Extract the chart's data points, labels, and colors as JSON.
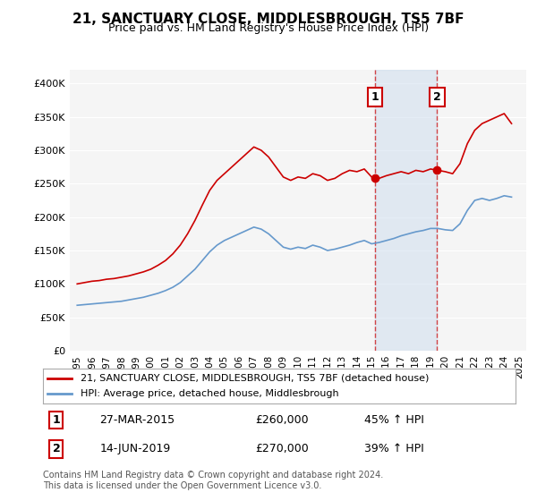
{
  "title": "21, SANCTUARY CLOSE, MIDDLESBROUGH, TS5 7BF",
  "subtitle": "Price paid vs. HM Land Registry's House Price Index (HPI)",
  "title_fontsize": 11,
  "subtitle_fontsize": 9,
  "legend_line1": "21, SANCTUARY CLOSE, MIDDLESBROUGH, TS5 7BF (detached house)",
  "legend_line2": "HPI: Average price, detached house, Middlesbrough",
  "red_color": "#cc0000",
  "blue_color": "#6699cc",
  "marker1_date": 2015.23,
  "marker2_date": 2019.45,
  "marker1_label": "1",
  "marker2_label": "2",
  "annotation1": "27-MAR-2015",
  "annotation1_price": "£260,000",
  "annotation1_hpi": "45% ↑ HPI",
  "annotation2": "14-JUN-2019",
  "annotation2_price": "£270,000",
  "annotation2_hpi": "39% ↑ HPI",
  "footer": "Contains HM Land Registry data © Crown copyright and database right 2024.\nThis data is licensed under the Open Government Licence v3.0.",
  "background_color": "#ffffff",
  "plot_bg_color": "#f5f5f5",
  "ylim": [
    0,
    420000
  ],
  "yticks": [
    0,
    50000,
    100000,
    150000,
    200000,
    250000,
    300000,
    350000,
    400000
  ],
  "ytick_labels": [
    "£0",
    "£50K",
    "£100K",
    "£150K",
    "£200K",
    "£250K",
    "£300K",
    "£350K",
    "£400K"
  ],
  "shaded_region": [
    2015.23,
    2019.45
  ],
  "red_x": [
    1995.0,
    1995.5,
    1996.0,
    1996.5,
    1997.0,
    1997.5,
    1998.0,
    1998.5,
    1999.0,
    1999.5,
    2000.0,
    2000.5,
    2001.0,
    2001.5,
    2002.0,
    2002.5,
    2003.0,
    2003.5,
    2004.0,
    2004.5,
    2005.0,
    2005.5,
    2006.0,
    2006.5,
    2007.0,
    2007.5,
    2008.0,
    2008.5,
    2009.0,
    2009.5,
    2010.0,
    2010.5,
    2011.0,
    2011.5,
    2012.0,
    2012.5,
    2013.0,
    2013.5,
    2014.0,
    2014.5,
    2015.0,
    2015.5,
    2016.0,
    2016.5,
    2017.0,
    2017.5,
    2018.0,
    2018.5,
    2019.0,
    2019.5,
    2020.0,
    2020.5,
    2021.0,
    2021.5,
    2022.0,
    2022.5,
    2023.0,
    2023.5,
    2024.0,
    2024.5
  ],
  "red_y": [
    100000,
    102000,
    104000,
    105000,
    107000,
    108000,
    110000,
    112000,
    115000,
    118000,
    122000,
    128000,
    135000,
    145000,
    158000,
    175000,
    195000,
    218000,
    240000,
    255000,
    265000,
    275000,
    285000,
    295000,
    305000,
    300000,
    290000,
    275000,
    260000,
    255000,
    260000,
    258000,
    265000,
    262000,
    255000,
    258000,
    265000,
    270000,
    268000,
    272000,
    260000,
    258000,
    262000,
    265000,
    268000,
    265000,
    270000,
    268000,
    272000,
    270000,
    268000,
    265000,
    280000,
    310000,
    330000,
    340000,
    345000,
    350000,
    355000,
    340000
  ],
  "blue_x": [
    1995.0,
    1995.5,
    1996.0,
    1996.5,
    1997.0,
    1997.5,
    1998.0,
    1998.5,
    1999.0,
    1999.5,
    2000.0,
    2000.5,
    2001.0,
    2001.5,
    2002.0,
    2002.5,
    2003.0,
    2003.5,
    2004.0,
    2004.5,
    2005.0,
    2005.5,
    2006.0,
    2006.5,
    2007.0,
    2007.5,
    2008.0,
    2008.5,
    2009.0,
    2009.5,
    2010.0,
    2010.5,
    2011.0,
    2011.5,
    2012.0,
    2012.5,
    2013.0,
    2013.5,
    2014.0,
    2014.5,
    2015.0,
    2015.5,
    2016.0,
    2016.5,
    2017.0,
    2017.5,
    2018.0,
    2018.5,
    2019.0,
    2019.5,
    2020.0,
    2020.5,
    2021.0,
    2021.5,
    2022.0,
    2022.5,
    2023.0,
    2023.5,
    2024.0,
    2024.5
  ],
  "blue_y": [
    68000,
    69000,
    70000,
    71000,
    72000,
    73000,
    74000,
    76000,
    78000,
    80000,
    83000,
    86000,
    90000,
    95000,
    102000,
    112000,
    122000,
    135000,
    148000,
    158000,
    165000,
    170000,
    175000,
    180000,
    185000,
    182000,
    175000,
    165000,
    155000,
    152000,
    155000,
    153000,
    158000,
    155000,
    150000,
    152000,
    155000,
    158000,
    162000,
    165000,
    160000,
    162000,
    165000,
    168000,
    172000,
    175000,
    178000,
    180000,
    183000,
    183000,
    181000,
    180000,
    190000,
    210000,
    225000,
    228000,
    225000,
    228000,
    232000,
    230000
  ]
}
